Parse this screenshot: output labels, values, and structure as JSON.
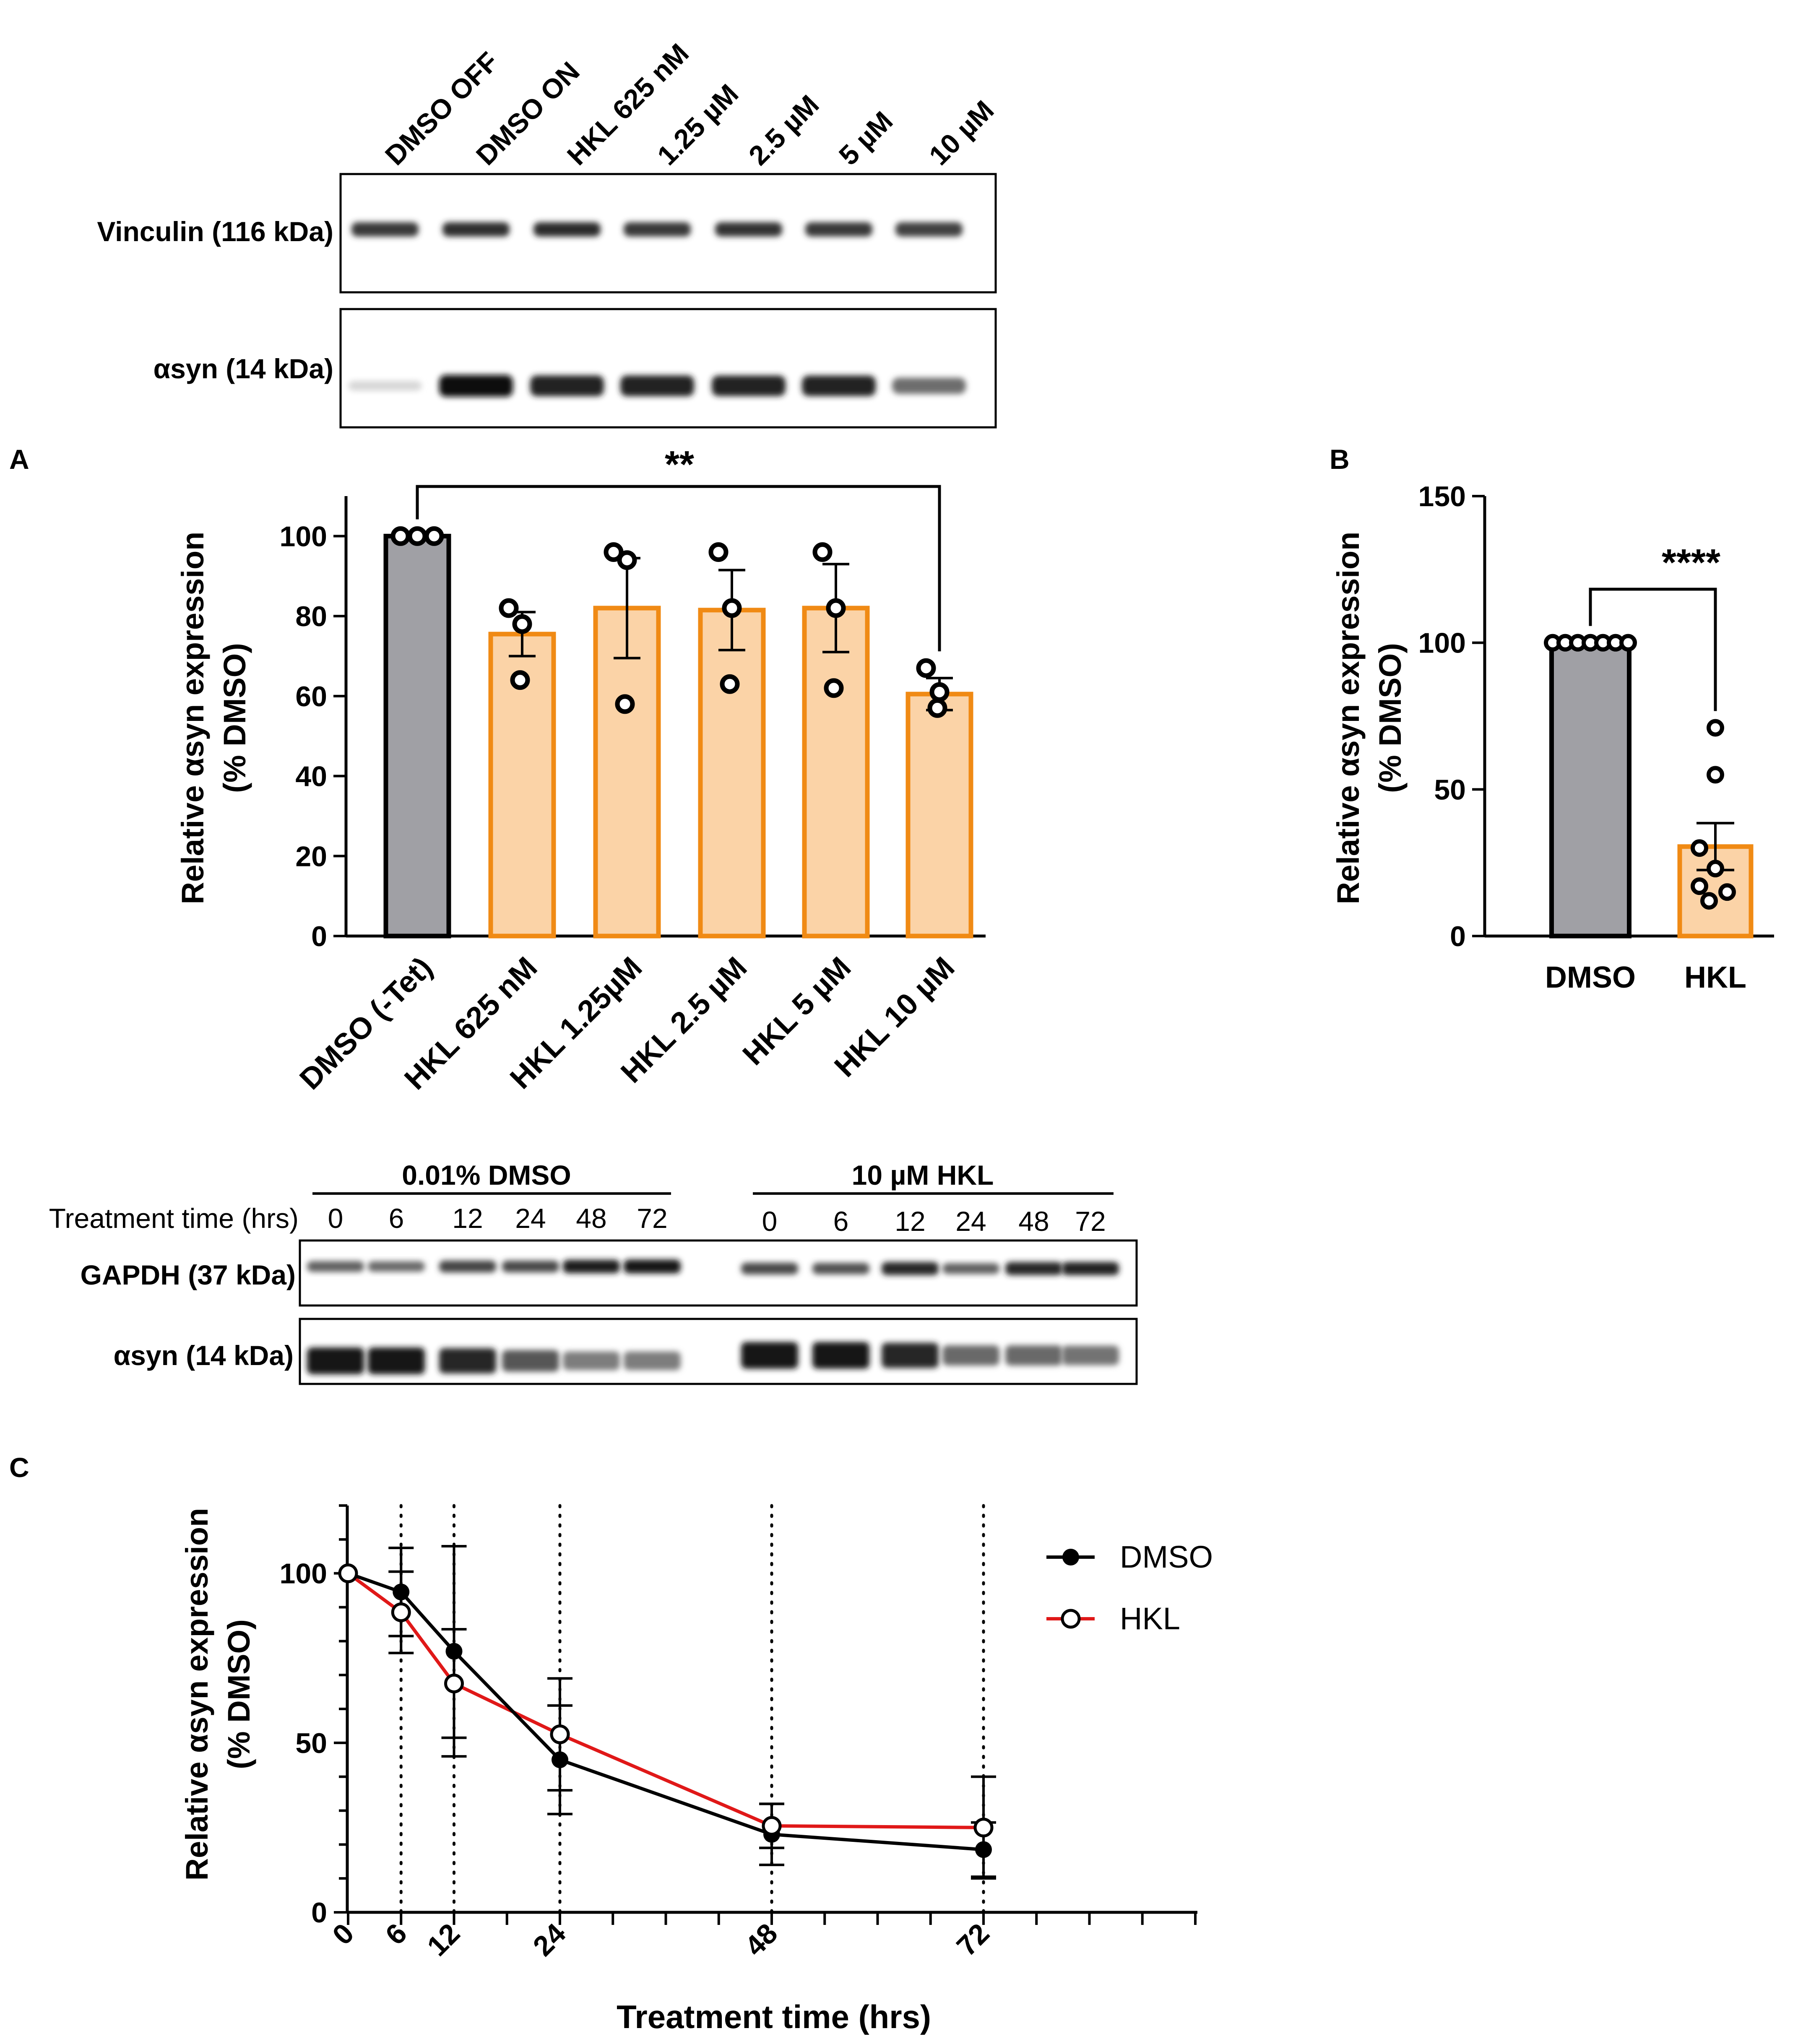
{
  "panel_labels": {
    "A": "A",
    "B": "B",
    "C": "C"
  },
  "colors": {
    "gray_bar": "#a0a0a5",
    "orange_fill": "#fbd3a7",
    "orange_edge": "#f08a14",
    "black": "#000000",
    "red": "#e01818"
  },
  "blot_A": {
    "lanes": [
      "DMSO OFF",
      "DMSO ON",
      "HKL 625 nM",
      "1.25 µM",
      "2.5 µM",
      "5 µM",
      "10 µM"
    ],
    "row1_label": "Vinculin (116 kDa)",
    "row2_label": "αsyn (14 kDa)",
    "row1_intensity": [
      0.85,
      0.9,
      0.92,
      0.85,
      0.88,
      0.85,
      0.8
    ],
    "row2_intensity": [
      0.05,
      1.0,
      0.92,
      0.92,
      0.9,
      0.9,
      0.55
    ]
  },
  "blot_C": {
    "group1_label": "0.01% DMSO",
    "group2_label": "10 µM HKL",
    "time_label": "Treatment time (hrs)",
    "times": [
      "0",
      "6",
      "12",
      "24",
      "48",
      "72"
    ],
    "row1_label": "GAPDH (37 kDa)",
    "row2_label": "αsyn (14 kDa)",
    "gapdh_intensity_dmso": [
      0.6,
      0.55,
      0.75,
      0.72,
      0.95,
      1.0
    ],
    "gapdh_intensity_hkl": [
      0.72,
      0.68,
      0.9,
      0.6,
      0.9,
      0.92
    ],
    "asyn_intensity_dmso": [
      1.0,
      1.0,
      0.9,
      0.65,
      0.45,
      0.45
    ],
    "asyn_intensity_hkl": [
      1.0,
      1.0,
      0.9,
      0.55,
      0.55,
      0.5
    ]
  },
  "chart_data": [
    {
      "id": "A",
      "type": "bar",
      "title": "",
      "significance": "**",
      "significance_between": [
        "DMSO (-Tet)",
        "HKL 10 µM"
      ],
      "categories": [
        "DMSO (-Tet)",
        "HKL 625 nM",
        "HKL 1.25µM",
        "HKL 2.5 µM",
        "HKL 5 µM",
        "HKL 10 µM"
      ],
      "values": [
        100,
        75.5,
        82,
        81.5,
        82,
        60.5
      ],
      "sem": [
        0,
        5.5,
        12.5,
        10,
        11,
        4
      ],
      "points": [
        [
          100,
          100,
          100
        ],
        [
          82,
          78,
          64
        ],
        [
          96,
          94,
          58
        ],
        [
          96,
          82,
          63
        ],
        [
          96,
          82,
          62
        ],
        [
          67,
          61,
          57
        ]
      ],
      "yticks": [
        "0",
        "20",
        "40",
        "60",
        "80",
        "100"
      ],
      "ylim": [
        0,
        110
      ],
      "ylabel_line1": "Relative αsyn expression",
      "ylabel_line2": "(% DMSO)",
      "xlabel": ""
    },
    {
      "id": "B",
      "type": "bar",
      "title": "",
      "significance": "****",
      "categories": [
        "DMSO",
        "HKL"
      ],
      "values": [
        100,
        30.5
      ],
      "sem": [
        0,
        8
      ],
      "points": [
        [
          100,
          100,
          100,
          100,
          100,
          100,
          100
        ],
        [
          71,
          55,
          30,
          23,
          17,
          15,
          12
        ]
      ],
      "yticks": [
        "0",
        "50",
        "100",
        "150"
      ],
      "ylim": [
        0,
        150
      ],
      "ylabel_line1": "Relative αsyn expression",
      "ylabel_line2": "(% DMSO)",
      "xlabel": ""
    },
    {
      "id": "C",
      "type": "line",
      "title": "",
      "x": [
        0,
        6,
        12,
        24,
        48,
        72
      ],
      "xticks": [
        "0",
        "6",
        "12",
        "24",
        "48",
        "72"
      ],
      "series": [
        {
          "name": "DMSO",
          "values": [
            100,
            94.5,
            77,
            45,
            23,
            18.5
          ],
          "err": [
            0,
            13,
            31,
            16,
            9,
            8
          ]
        },
        {
          "name": "HKL",
          "values": [
            100,
            88.5,
            67.5,
            52.5,
            25.5,
            25
          ],
          "err": [
            0,
            12,
            16,
            16.5,
            6.5,
            15
          ]
        }
      ],
      "xlim": [
        0,
        96
      ],
      "ylim": [
        0,
        120
      ],
      "yticks": [
        "0",
        "50",
        "100"
      ],
      "ylabel_line1": "Relative αsyn expression",
      "ylabel_line2": "(% DMSO)",
      "xlabel": "Treatment time (hrs)"
    }
  ]
}
